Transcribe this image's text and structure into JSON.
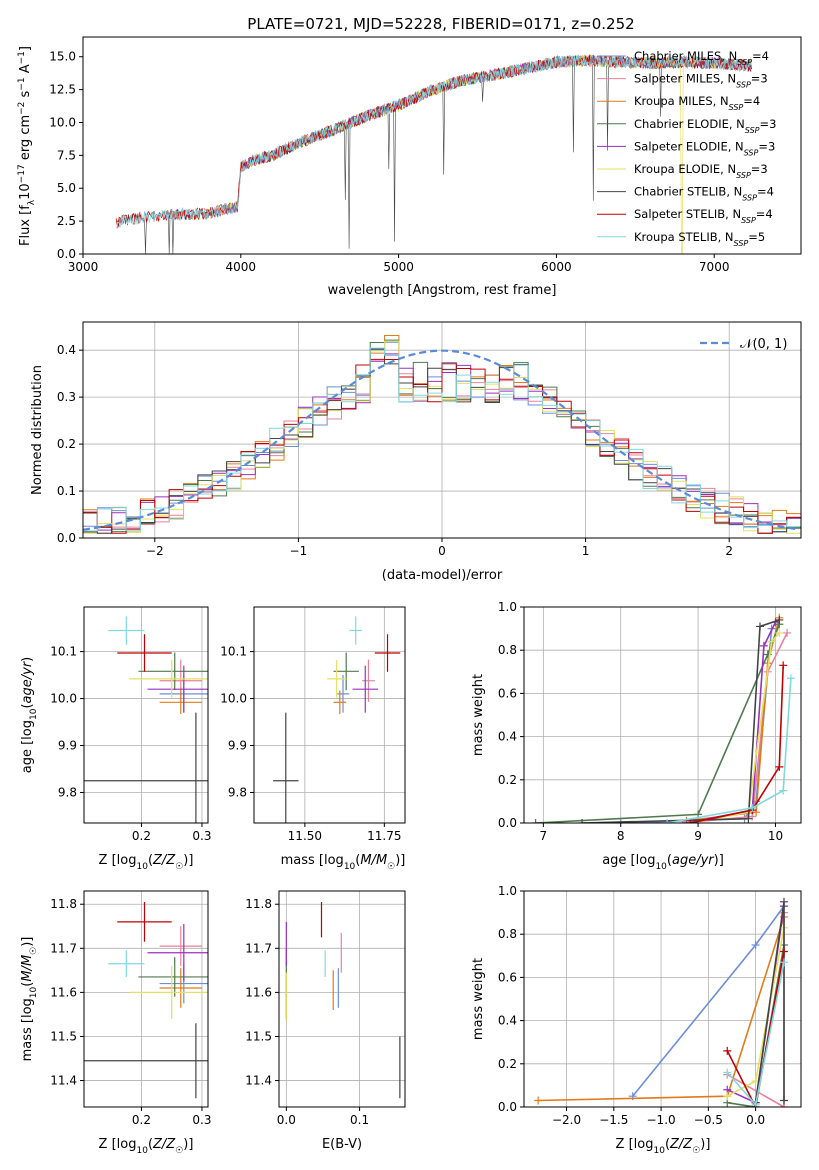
{
  "title": "PLATE=0721, MJD=52228, FIBERID=0171, z=0.252",
  "models": [
    {
      "name": "Chabrier MILES",
      "nssp": "4",
      "color": "#6a8fd8"
    },
    {
      "name": "Salpeter MILES",
      "nssp": "3",
      "color": "#e8829a"
    },
    {
      "name": "Kroupa MILES",
      "nssp": "4",
      "color": "#e07b1a"
    },
    {
      "name": "Chabrier ELODIE",
      "nssp": "3",
      "color": "#4f7a4f"
    },
    {
      "name": "Salpeter ELODIE",
      "nssp": "3",
      "color": "#9b30c0"
    },
    {
      "name": "Kroupa ELODIE",
      "nssp": "3",
      "color": "#e4e060"
    },
    {
      "name": "Chabrier STELIB",
      "nssp": "4",
      "color": "#444444"
    },
    {
      "name": "Salpeter STELIB",
      "nssp": "4",
      "color": "#c00000"
    },
    {
      "name": "Kroupa STELIB",
      "nssp": "5",
      "color": "#80d8e0"
    }
  ],
  "chart_data": [
    {
      "type": "line",
      "id": "spectrum",
      "title": "PLATE=0721, MJD=52228, FIBERID=0171, z=0.252",
      "xlabel": "wavelength [Angstrom, rest frame]",
      "ylabel": "Flux [f_λ 10^-17 erg cm^-2 s^-1 A^-1]",
      "xlim": [
        3000,
        7550
      ],
      "ylim": [
        0,
        16.5
      ],
      "xticks": [
        "3000",
        "4000",
        "5000",
        "6000",
        "7000"
      ],
      "yticks": [
        "0.0",
        "2.5",
        "5.0",
        "7.5",
        "10.0",
        "12.5",
        "15.0"
      ],
      "grid": false,
      "legend": "top-right",
      "data_range": [
        3210,
        7240
      ],
      "continuum": {
        "x": [
          3210,
          3260,
          3400,
          3600,
          3800,
          3900,
          3980,
          4000,
          4100,
          4200,
          4400,
          4600,
          4800,
          5000,
          5200,
          5400,
          5600,
          5800,
          6000,
          6200,
          6400,
          6600,
          6800,
          7000,
          7240
        ],
        "y": [
          2.3,
          2.6,
          2.8,
          3.0,
          3.1,
          3.4,
          3.6,
          6.6,
          7.2,
          7.5,
          8.6,
          9.5,
          10.5,
          11.3,
          12.4,
          13.2,
          13.6,
          14.1,
          14.6,
          14.7,
          14.6,
          14.5,
          14.6,
          14.5,
          14.3
        ]
      }
    },
    {
      "type": "histogram",
      "id": "residuals",
      "xlabel": "(data-model)/error",
      "ylabel": "Normed distribution",
      "xlim": [
        -2.5,
        2.5
      ],
      "ylim": [
        0,
        0.46
      ],
      "xticks": [
        "−2",
        "−1",
        "0",
        "1",
        "2"
      ],
      "yticks": [
        "0.0",
        "0.1",
        "0.2",
        "0.3",
        "0.4"
      ],
      "grid": true,
      "legend": "top-right",
      "reference": {
        "label": "𝒩(0, 1)",
        "mean": 0,
        "sd": 1,
        "color": "#5b8bd8"
      },
      "bin_width": 0.1
    },
    {
      "type": "scatter",
      "id": "age-vs-Z",
      "xlabel": "Z [log10(Z/Z☉)]",
      "ylabel": "age [log10(age/yr)]",
      "xlim": [
        0.105,
        0.31
      ],
      "ylim": [
        9.735,
        10.195
      ],
      "xticks": [
        "0.2",
        "0.3"
      ],
      "yticks": [
        "9.8",
        "9.9",
        "10.0",
        "10.1"
      ],
      "grid": true,
      "points": [
        {
          "x": 0.27,
          "y": 10.01,
          "xerr": 0.04,
          "yerr": 0.04
        },
        {
          "x": 0.265,
          "y": 10.038,
          "xerr": 0.035,
          "yerr": 0.045
        },
        {
          "x": 0.265,
          "y": 9.992,
          "xerr": 0.035,
          "yerr": 0.025
        },
        {
          "x": 0.255,
          "y": 10.058,
          "xerr": 0.06,
          "yerr": 0.04
        },
        {
          "x": 0.27,
          "y": 10.02,
          "xerr": 0.06,
          "yerr": 0.05
        },
        {
          "x": 0.25,
          "y": 10.042,
          "xerr": 0.07,
          "yerr": 0.04
        },
        {
          "x": 0.29,
          "y": 9.825,
          "xerr": 0.2,
          "yerr": 0.145
        },
        {
          "x": 0.205,
          "y": 10.097,
          "xerr": 0.045,
          "yerr": 0.04
        },
        {
          "x": 0.175,
          "y": 10.145,
          "xerr": 0.03,
          "yerr": 0.03
        }
      ]
    },
    {
      "type": "scatter",
      "id": "age-vs-mass",
      "xlabel": "mass [log10(M/M☉)]",
      "ylabel": "",
      "xlim": [
        11.34,
        11.815
      ],
      "ylim": [
        9.735,
        10.195
      ],
      "xticks": [
        "11.50",
        "11.75"
      ],
      "yticks": [
        "9.8",
        "9.9",
        "10.0",
        "10.1"
      ],
      "grid": true,
      "points": [
        {
          "x": 11.62,
          "y": 10.01,
          "xerr": 0.02,
          "yerr": 0.04
        },
        {
          "x": 11.7,
          "y": 10.038,
          "xerr": 0.02,
          "yerr": 0.045
        },
        {
          "x": 11.61,
          "y": 9.992,
          "xerr": 0.02,
          "yerr": 0.025
        },
        {
          "x": 11.63,
          "y": 10.058,
          "xerr": 0.04,
          "yerr": 0.04
        },
        {
          "x": 11.69,
          "y": 10.02,
          "xerr": 0.04,
          "yerr": 0.05
        },
        {
          "x": 11.6,
          "y": 10.042,
          "xerr": 0.03,
          "yerr": 0.04
        },
        {
          "x": 11.44,
          "y": 9.825,
          "xerr": 0.04,
          "yerr": 0.145
        },
        {
          "x": 11.76,
          "y": 10.097,
          "xerr": 0.04,
          "yerr": 0.04
        },
        {
          "x": 11.66,
          "y": 10.145,
          "xerr": 0.02,
          "yerr": 0.03
        }
      ]
    },
    {
      "type": "line",
      "id": "mass-weight-vs-age",
      "xlabel": "age  [log10(age/yr)]",
      "ylabel": "mass weight",
      "xlim": [
        6.75,
        10.33
      ],
      "ylim": [
        0,
        1.0
      ],
      "xticks": [
        "7",
        "8",
        "9",
        "10"
      ],
      "yticks": [
        "0.0",
        "0.2",
        "0.4",
        "0.6",
        "0.8",
        "1.0"
      ],
      "grid": true,
      "series": [
        {
          "x": [
            8.0,
            9.6,
            9.75,
            9.95
          ],
          "y": [
            0.0,
            0.02,
            0.1,
            0.9
          ]
        },
        {
          "x": [
            8.8,
            9.7,
            9.9,
            10.15
          ],
          "y": [
            0.0,
            0.03,
            0.7,
            0.88
          ]
        },
        {
          "x": [
            8.85,
            9.75,
            9.9,
            10.05
          ],
          "y": [
            0.01,
            0.05,
            0.74,
            0.95
          ]
        },
        {
          "x": [
            6.9,
            9.0,
            9.9,
            10.05
          ],
          "y": [
            0.0,
            0.04,
            0.78,
            0.92
          ]
        },
        {
          "x": [
            8.85,
            9.7,
            9.85,
            10.0
          ],
          "y": [
            0.0,
            0.06,
            0.82,
            0.93
          ]
        },
        {
          "x": [
            8.9,
            9.65,
            9.95,
            10.05
          ],
          "y": [
            0.0,
            0.05,
            0.84,
            0.88
          ]
        },
        {
          "x": [
            7.5,
            9.65,
            9.8,
            10.05
          ],
          "y": [
            0.0,
            0.02,
            0.91,
            0.94
          ]
        },
        {
          "x": [
            8.9,
            9.7,
            10.05,
            10.1
          ],
          "y": [
            0.0,
            0.06,
            0.26,
            0.73
          ]
        },
        {
          "x": [
            8.6,
            9.7,
            10.1,
            10.2
          ],
          "y": [
            0.0,
            0.07,
            0.15,
            0.67
          ]
        }
      ]
    },
    {
      "type": "scatter",
      "id": "mass-vs-Z",
      "xlabel": "Z [log10(Z/Z☉)]",
      "ylabel": "mass [log10(M/M☉)]",
      "xlim": [
        0.105,
        0.31
      ],
      "ylim": [
        11.34,
        11.83
      ],
      "xticks": [
        "0.2",
        "0.3"
      ],
      "yticks": [
        "11.4",
        "11.5",
        "11.6",
        "11.7",
        "11.8"
      ],
      "grid": true,
      "points": [
        {
          "x": 0.27,
          "y": 11.62,
          "xerr": 0.04,
          "yerr": 0.045
        },
        {
          "x": 0.265,
          "y": 11.705,
          "xerr": 0.035,
          "yerr": 0.045
        },
        {
          "x": 0.265,
          "y": 11.61,
          "xerr": 0.035,
          "yerr": 0.045
        },
        {
          "x": 0.255,
          "y": 11.635,
          "xerr": 0.06,
          "yerr": 0.045
        },
        {
          "x": 0.27,
          "y": 11.69,
          "xerr": 0.06,
          "yerr": 0.065
        },
        {
          "x": 0.25,
          "y": 11.6,
          "xerr": 0.07,
          "yerr": 0.06
        },
        {
          "x": 0.29,
          "y": 11.445,
          "xerr": 0.2,
          "yerr": 0.085
        },
        {
          "x": 0.205,
          "y": 11.76,
          "xerr": 0.045,
          "yerr": 0.045
        },
        {
          "x": 0.175,
          "y": 11.665,
          "xerr": 0.03,
          "yerr": 0.03
        }
      ]
    },
    {
      "type": "scatter",
      "id": "mass-vs-ebv",
      "xlabel": "E(B-V)",
      "ylabel": "",
      "xlim": [
        -0.01,
        0.162
      ],
      "ylim": [
        11.34,
        11.83
      ],
      "xticks": [
        "0.0",
        "0.1"
      ],
      "yticks": [
        "11.4",
        "11.5",
        "11.6",
        "11.7",
        "11.8"
      ],
      "grid": true,
      "points": [
        {
          "x": 0.071,
          "y": 11.61,
          "xerr": 0,
          "yerr": 0.045
        },
        {
          "x": 0.075,
          "y": 11.69,
          "xerr": 0,
          "yerr": 0.045
        },
        {
          "x": 0.064,
          "y": 11.605,
          "xerr": 0,
          "yerr": 0.045
        },
        {
          "x": 0.0,
          "y": 11.62,
          "xerr": 0,
          "yerr": 0.08
        },
        {
          "x": 0.0,
          "y": 11.71,
          "xerr": 0,
          "yerr": 0.05
        },
        {
          "x": 0.0,
          "y": 11.59,
          "xerr": 0,
          "yerr": 0.055
        },
        {
          "x": 0.155,
          "y": 11.43,
          "xerr": 0,
          "yerr": 0.07
        },
        {
          "x": 0.048,
          "y": 11.765,
          "xerr": 0,
          "yerr": 0.04
        },
        {
          "x": 0.053,
          "y": 11.665,
          "xerr": 0,
          "yerr": 0.03
        }
      ]
    },
    {
      "type": "line",
      "id": "mass-weight-vs-Z",
      "xlabel": "Z [log10(Z/Z☉)]",
      "ylabel": "mass weight",
      "xlim": [
        -2.45,
        0.48
      ],
      "ylim": [
        0,
        1.0
      ],
      "xticks": [
        "−2.0",
        "−1.5",
        "−1.0",
        "−0.5",
        "0.0"
      ],
      "yticks": [
        "0.0",
        "0.2",
        "0.4",
        "0.6",
        "0.8",
        "1.0"
      ],
      "grid": true,
      "series": [
        {
          "x": [
            -1.3,
            0.0,
            0.3
          ],
          "y": [
            0.05,
            0.75,
            0.93
          ]
        },
        {
          "x": [
            -0.3,
            0.3,
            0.3
          ],
          "y": [
            0.15,
            0.0,
            0.9
          ]
        },
        {
          "x": [
            -2.3,
            -0.3,
            0.3
          ],
          "y": [
            0.03,
            0.05,
            0.88
          ]
        },
        {
          "x": [
            -0.3,
            0.0,
            0.3
          ],
          "y": [
            0.02,
            0.0,
            0.75
          ]
        },
        {
          "x": [
            -0.3,
            0.0,
            0.3
          ],
          "y": [
            0.08,
            0.02,
            0.93
          ]
        },
        {
          "x": [
            -0.3,
            0.0,
            0.3
          ],
          "y": [
            0.05,
            0.12,
            0.83
          ]
        },
        {
          "x": [
            0.0,
            0.3,
            0.3
          ],
          "y": [
            0.02,
            0.95,
            0.03
          ]
        },
        {
          "x": [
            -0.3,
            0.0,
            0.3
          ],
          "y": [
            0.26,
            0.0,
            0.72
          ]
        },
        {
          "x": [
            -0.3,
            0.0,
            0.3
          ],
          "y": [
            0.16,
            0.01,
            0.67
          ]
        }
      ]
    }
  ]
}
